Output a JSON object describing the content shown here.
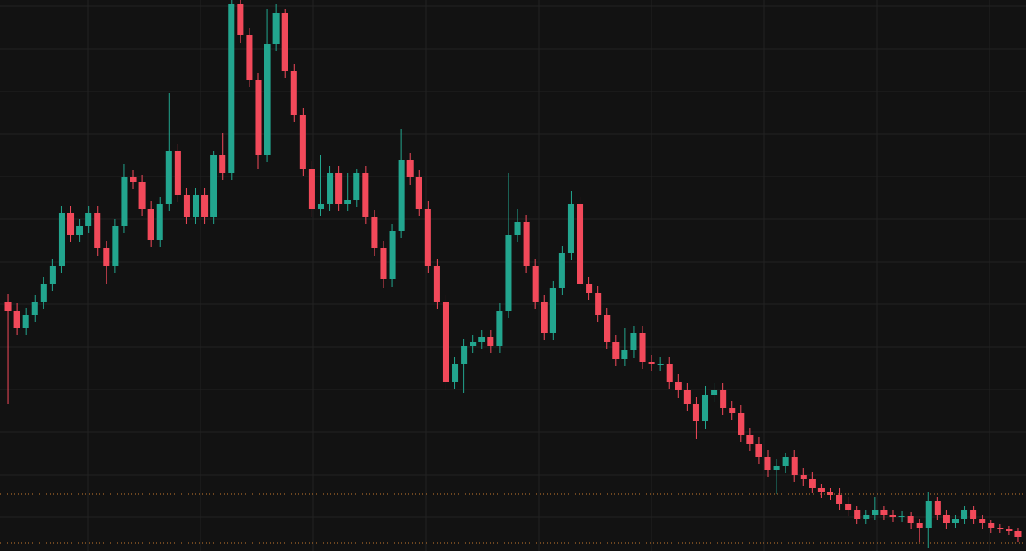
{
  "chart_data": {
    "type": "candlestick",
    "open": [
      281,
      271,
      251,
      266,
      281,
      301,
      321,
      381,
      356,
      366,
      381,
      341,
      321,
      366,
      421,
      416,
      386,
      351,
      391,
      451,
      401,
      376,
      401,
      376,
      446,
      426,
      616,
      581,
      531,
      446,
      571,
      606,
      541,
      491,
      431,
      386,
      391,
      426,
      391,
      396,
      426,
      376,
      341,
      306,
      361,
      441,
      421,
      386,
      321,
      281,
      191,
      211,
      231,
      236,
      241,
      231,
      271,
      356,
      371,
      321,
      281,
      246,
      296,
      336,
      391,
      301,
      291,
      266,
      236,
      216,
      226,
      246,
      213,
      211,
      211,
      191,
      181,
      166,
      146,
      176,
      181,
      161,
      156,
      131,
      121,
      106,
      91,
      96,
      106,
      86,
      81,
      71,
      66,
      63,
      53,
      46,
      36,
      41,
      46,
      41,
      38,
      39,
      31,
      26,
      56,
      41,
      31,
      36,
      46,
      36,
      31,
      26,
      25,
      23
    ],
    "high": [
      290,
      279,
      274,
      289,
      309,
      329,
      389,
      389,
      374,
      389,
      389,
      349,
      374,
      436,
      429,
      424,
      394,
      399,
      516,
      459,
      409,
      409,
      409,
      451,
      471,
      621,
      621,
      589,
      539,
      611,
      616,
      611,
      549,
      499,
      439,
      446,
      434,
      434,
      426,
      431,
      434,
      384,
      349,
      369,
      476,
      449,
      429,
      394,
      329,
      289,
      219,
      239,
      244,
      249,
      249,
      279,
      426,
      386,
      379,
      329,
      289,
      304,
      344,
      406,
      399,
      309,
      299,
      274,
      244,
      251,
      254,
      254,
      221,
      219,
      219,
      199,
      189,
      174,
      186,
      189,
      189,
      169,
      164,
      139,
      129,
      114,
      104,
      111,
      114,
      94,
      89,
      76,
      71,
      71,
      61,
      51,
      46,
      61,
      51,
      46,
      45,
      44,
      36,
      66,
      61,
      46,
      41,
      51,
      51,
      41,
      35,
      30,
      28,
      26
    ],
    "low": [
      166,
      243,
      243,
      258,
      273,
      293,
      313,
      348,
      348,
      358,
      333,
      301,
      313,
      358,
      408,
      378,
      343,
      343,
      383,
      393,
      368,
      368,
      368,
      368,
      418,
      418,
      573,
      523,
      431,
      438,
      563,
      533,
      483,
      423,
      376,
      378,
      383,
      383,
      383,
      388,
      368,
      333,
      296,
      298,
      353,
      413,
      378,
      313,
      273,
      181,
      183,
      178,
      223,
      228,
      223,
      223,
      263,
      348,
      313,
      273,
      238,
      238,
      288,
      328,
      293,
      283,
      258,
      228,
      208,
      208,
      218,
      205,
      203,
      203,
      183,
      173,
      158,
      126,
      138,
      168,
      153,
      148,
      123,
      113,
      98,
      83,
      64,
      88,
      78,
      73,
      65,
      60,
      57,
      46,
      40,
      30,
      30,
      35,
      35,
      33,
      33,
      25,
      10,
      3,
      35,
      25,
      26,
      30,
      30,
      25,
      20,
      20,
      18,
      10
    ],
    "close": [
      271,
      251,
      266,
      281,
      301,
      321,
      381,
      356,
      366,
      381,
      341,
      321,
      366,
      421,
      416,
      386,
      351,
      391,
      451,
      401,
      376,
      401,
      376,
      446,
      426,
      616,
      581,
      531,
      446,
      571,
      606,
      541,
      491,
      431,
      386,
      391,
      426,
      391,
      396,
      426,
      376,
      341,
      306,
      361,
      441,
      421,
      386,
      321,
      281,
      191,
      211,
      231,
      236,
      241,
      231,
      271,
      356,
      371,
      321,
      281,
      246,
      296,
      336,
      391,
      301,
      291,
      266,
      236,
      216,
      226,
      246,
      213,
      211,
      211,
      191,
      181,
      166,
      146,
      176,
      181,
      161,
      156,
      131,
      121,
      106,
      91,
      96,
      106,
      86,
      81,
      71,
      66,
      63,
      53,
      46,
      36,
      41,
      46,
      41,
      38,
      39,
      31,
      26,
      56,
      41,
      31,
      36,
      46,
      36,
      31,
      26,
      25,
      23,
      16
    ],
    "ylim": [
      0,
      621
    ],
    "yticks": [
      38,
      86,
      134,
      182,
      230,
      278,
      326,
      374,
      422,
      470,
      518,
      566,
      614
    ],
    "grid": true,
    "up_color": "#22a58e",
    "down_color": "#f2495a",
    "price_lines": [
      {
        "value": 64,
        "color": "#c87a2e"
      },
      {
        "value": 9,
        "color": "#c87a2e"
      }
    ]
  }
}
